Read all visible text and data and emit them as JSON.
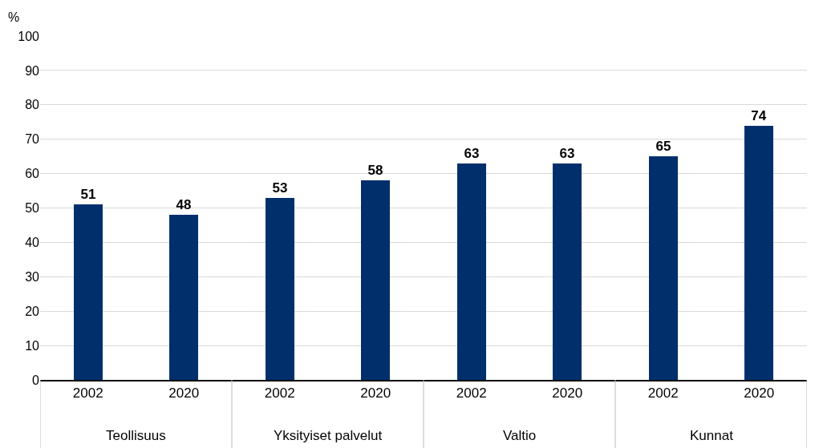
{
  "chart_data": {
    "type": "bar",
    "ylabel": "%",
    "categories": [
      "2002",
      "2020",
      "2002",
      "2020",
      "2002",
      "2020",
      "2002",
      "2020"
    ],
    "values": [
      51,
      48,
      53,
      58,
      63,
      63,
      65,
      74
    ],
    "color": "#002f6c",
    "ylim": [
      0,
      100
    ],
    "yticks": [
      0,
      10,
      20,
      30,
      40,
      50,
      60,
      70,
      80,
      90,
      100
    ],
    "grid": "y",
    "data_labels": true,
    "annotations": [
      "Teollisuus",
      "Yksityiset palvelut",
      "Valtio",
      "Kunnat"
    ]
  }
}
